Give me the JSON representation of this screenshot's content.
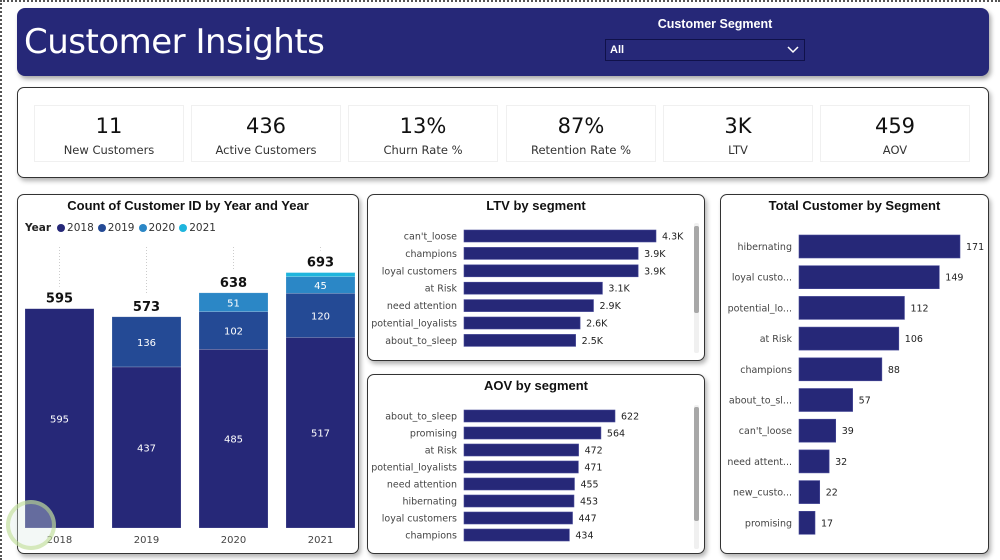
{
  "header": {
    "title": "Customer Insights",
    "slicer": {
      "label": "Customer Segment",
      "value": "All",
      "icon": "chevron-down-icon"
    }
  },
  "kpis": [
    {
      "value": "11",
      "label": "New Customers"
    },
    {
      "value": "436",
      "label": "Active Customers"
    },
    {
      "value": "13%",
      "label": "Churn Rate %"
    },
    {
      "value": "87%",
      "label": "Retention Rate %"
    },
    {
      "value": "3K",
      "label": "LTV"
    },
    {
      "value": "459",
      "label": "AOV"
    }
  ],
  "colors": {
    "header_bg": "#262878",
    "bar": "#262878",
    "series": [
      "#262878",
      "#244a95",
      "#2b87c6",
      "#1fb5dd"
    ]
  },
  "chart_data": [
    {
      "type": "bar",
      "stacked": true,
      "title": "Count of Customer ID by Year and Year",
      "legend_title": "Year",
      "legend_position": "top-left",
      "categories": [
        "2018",
        "2019",
        "2020",
        "2021"
      ],
      "series": [
        {
          "name": "2018",
          "values": [
            595,
            437,
            485,
            517
          ]
        },
        {
          "name": "2019",
          "values": [
            0,
            136,
            102,
            120
          ]
        },
        {
          "name": "2020",
          "values": [
            0,
            0,
            51,
            45
          ]
        },
        {
          "name": "2021",
          "values": [
            0,
            0,
            0,
            11
          ]
        }
      ],
      "totals": [
        595,
        573,
        638,
        693
      ],
      "segment_labels": [
        [
          "595"
        ],
        [
          "437",
          "136"
        ],
        [
          "485",
          "102",
          "51"
        ],
        [
          "517",
          "120",
          "45",
          ""
        ]
      ],
      "xlabel": "",
      "ylabel": "",
      "ylim": [
        0,
        700
      ],
      "grid": false
    },
    {
      "type": "bar",
      "orientation": "horizontal",
      "title": "LTV by segment",
      "categories": [
        "can't_loose",
        "champions",
        "loyal customers",
        "at Risk",
        "need attention",
        "potential_loyalists",
        "about_to_sleep"
      ],
      "values": [
        4300,
        3900,
        3900,
        3100,
        2900,
        2600,
        2500
      ],
      "value_labels": [
        "4.3K",
        "3.9K",
        "3.9K",
        "3.1K",
        "2.9K",
        "2.6K",
        "2.5K"
      ],
      "scrollable": true
    },
    {
      "type": "bar",
      "orientation": "horizontal",
      "title": "AOV by segment",
      "categories": [
        "about_to_sleep",
        "promising",
        "at Risk",
        "potential_loyalists",
        "need attention",
        "hibernating",
        "loyal customers",
        "champions"
      ],
      "values": [
        622,
        564,
        472,
        471,
        455,
        453,
        447,
        434
      ],
      "value_labels": [
        "622",
        "564",
        "472",
        "471",
        "455",
        "453",
        "447",
        "434"
      ],
      "scrollable": true
    },
    {
      "type": "bar",
      "orientation": "horizontal",
      "title": "Total Customer by Segment",
      "categories": [
        "hibernating",
        "loyal custo...",
        "potential_lo...",
        "at Risk",
        "champions",
        "about_to_sl...",
        "can't_loose",
        "need attent...",
        "new_custo...",
        "promising"
      ],
      "values": [
        171,
        149,
        112,
        106,
        88,
        57,
        39,
        32,
        22,
        17
      ],
      "value_labels": [
        "171",
        "149",
        "112",
        "106",
        "88",
        "57",
        "39",
        "32",
        "22",
        "17"
      ]
    }
  ]
}
